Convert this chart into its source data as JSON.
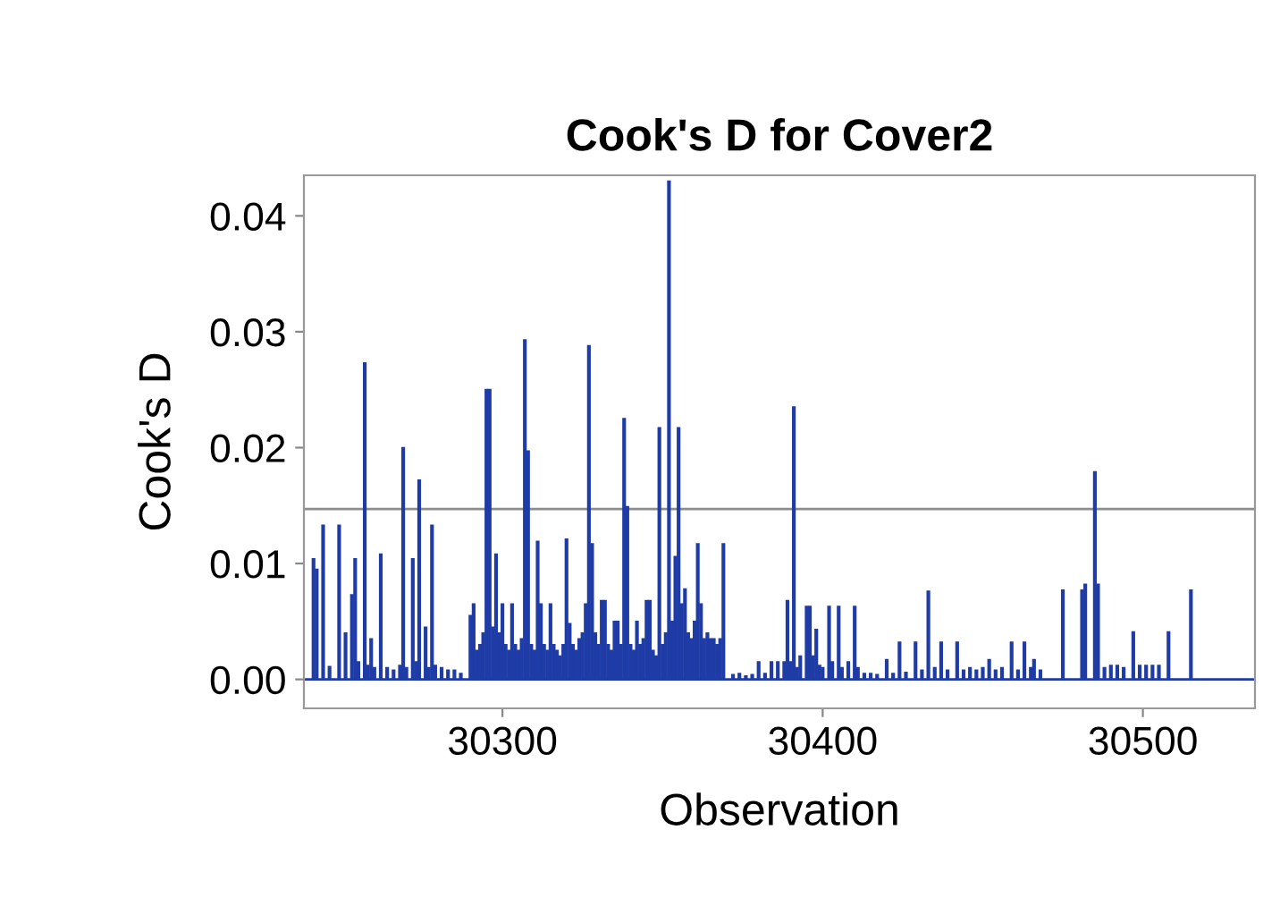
{
  "chart_data": {
    "type": "bar",
    "title": "Cook's D for Cover2",
    "xlabel": "Observation",
    "ylabel": "Cook's D",
    "color": "#1f3ca6",
    "grid": false,
    "x": [
      30241,
      30242,
      30244,
      30246,
      30249,
      30251,
      30253,
      30254,
      30255,
      30257,
      30258,
      30259,
      30260,
      30262,
      30264,
      30266,
      30268,
      30269,
      30270,
      30272,
      30273,
      30274,
      30276,
      30277,
      30278,
      30279,
      30281,
      30283,
      30285,
      30287,
      30290,
      30291,
      30292,
      30293,
      30294,
      30295,
      30296,
      30297,
      30298,
      30299,
      30300,
      30301,
      30302,
      30303,
      30304,
      30305,
      30306,
      30307,
      30308,
      30309,
      30310,
      30311,
      30312,
      30313,
      30314,
      30315,
      30316,
      30317,
      30318,
      30319,
      30320,
      30321,
      30322,
      30323,
      30324,
      30325,
      30326,
      30327,
      30328,
      30329,
      30330,
      30331,
      30332,
      30333,
      30334,
      30335,
      30336,
      30337,
      30338,
      30339,
      30340,
      30341,
      30342,
      30343,
      30344,
      30345,
      30346,
      30347,
      30348,
      30349,
      30350,
      30351,
      30352,
      30353,
      30354,
      30355,
      30356,
      30357,
      30358,
      30359,
      30360,
      30361,
      30362,
      30363,
      30364,
      30365,
      30366,
      30367,
      30368,
      30369,
      30372,
      30374,
      30376,
      30378,
      30380,
      30382,
      30384,
      30386,
      30388,
      30389,
      30390,
      30391,
      30392,
      30393,
      30395,
      30396,
      30397,
      30398,
      30399,
      30400,
      30402,
      30403,
      30405,
      30406,
      30408,
      30410,
      30411,
      30413,
      30415,
      30417,
      30420,
      30422,
      30424,
      30426,
      30429,
      30431,
      30433,
      30435,
      30437,
      30439,
      30442,
      30444,
      30446,
      30448,
      30450,
      30452,
      30454,
      30456,
      30459,
      30461,
      30463,
      30465,
      30466,
      30468,
      30475,
      30481,
      30482,
      30485,
      30486,
      30488,
      30490,
      30492,
      30494,
      30497,
      30499,
      30501,
      30503,
      30505,
      30508,
      30515
    ],
    "values": [
      0.0104,
      0.0095,
      0.0133,
      0.0011,
      0.0133,
      0.004,
      0.0073,
      0.0104,
      0.0015,
      0.0273,
      0.0012,
      0.0035,
      0.001,
      0.0108,
      0.001,
      0.0008,
      0.0012,
      0.02,
      0.001,
      0.0104,
      0.0015,
      0.0172,
      0.0045,
      0.001,
      0.0133,
      0.0012,
      0.001,
      0.0008,
      0.0008,
      0.0005,
      0.0055,
      0.0065,
      0.0025,
      0.003,
      0.004,
      0.025,
      0.025,
      0.0045,
      0.0108,
      0.004,
      0.0065,
      0.003,
      0.0025,
      0.0065,
      0.003,
      0.0025,
      0.0035,
      0.0293,
      0.0197,
      0.003,
      0.0025,
      0.0119,
      0.0065,
      0.003,
      0.0025,
      0.0065,
      0.003,
      0.0025,
      0.002,
      0.003,
      0.0121,
      0.0048,
      0.003,
      0.0025,
      0.0035,
      0.004,
      0.0065,
      0.0288,
      0.0117,
      0.004,
      0.003,
      0.0068,
      0.0068,
      0.003,
      0.0025,
      0.005,
      0.005,
      0.003,
      0.0225,
      0.0149,
      0.003,
      0.0025,
      0.005,
      0.003,
      0.0035,
      0.0068,
      0.0068,
      0.0025,
      0.002,
      0.0217,
      0.003,
      0.004,
      0.043,
      0.005,
      0.0106,
      0.0217,
      0.0065,
      0.0078,
      0.004,
      0.0035,
      0.005,
      0.0117,
      0.0065,
      0.0035,
      0.004,
      0.0035,
      0.0035,
      0.003,
      0.0035,
      0.0117,
      0.0004,
      0.0005,
      0.0003,
      0.0004,
      0.0015,
      0.0005,
      0.0015,
      0.0015,
      0.0015,
      0.0068,
      0.0015,
      0.0235,
      0.001,
      0.002,
      0.0063,
      0.0063,
      0.002,
      0.0043,
      0.0012,
      0.001,
      0.0063,
      0.0015,
      0.0063,
      0.001,
      0.0015,
      0.0063,
      0.001,
      0.0005,
      0.0005,
      0.0004,
      0.0017,
      0.0005,
      0.0032,
      0.0006,
      0.0032,
      0.0008,
      0.0076,
      0.001,
      0.0032,
      0.0008,
      0.0032,
      0.0008,
      0.001,
      0.0008,
      0.001,
      0.0017,
      0.0008,
      0.001,
      0.0032,
      0.0008,
      0.0032,
      0.001,
      0.0017,
      0.0008,
      0.0077,
      0.0077,
      0.0082,
      0.0179,
      0.0082,
      0.001,
      0.0012,
      0.0012,
      0.001,
      0.0041,
      0.0012,
      0.0012,
      0.0012,
      0.0012,
      0.0041,
      0.0077
    ],
    "xlim": [
      30238,
      30535
    ],
    "xticks": [
      30300,
      30400,
      30500
    ],
    "ylim": [
      -0.0025,
      0.0435
    ],
    "yticks": [
      {
        "value": 0,
        "label": "0.00"
      },
      {
        "value": 0.01,
        "label": "0.01"
      },
      {
        "value": 0.02,
        "label": "0.02"
      },
      {
        "value": 0.03,
        "label": "0.03"
      },
      {
        "value": 0.04,
        "label": "0.04"
      }
    ],
    "ref_lines": [
      {
        "axis": "y",
        "value": 0.0147,
        "label": null,
        "color": "#8c8c8c"
      },
      {
        "axis": "y",
        "value": 0,
        "label": null,
        "color": "#1f3ca6"
      }
    ]
  }
}
